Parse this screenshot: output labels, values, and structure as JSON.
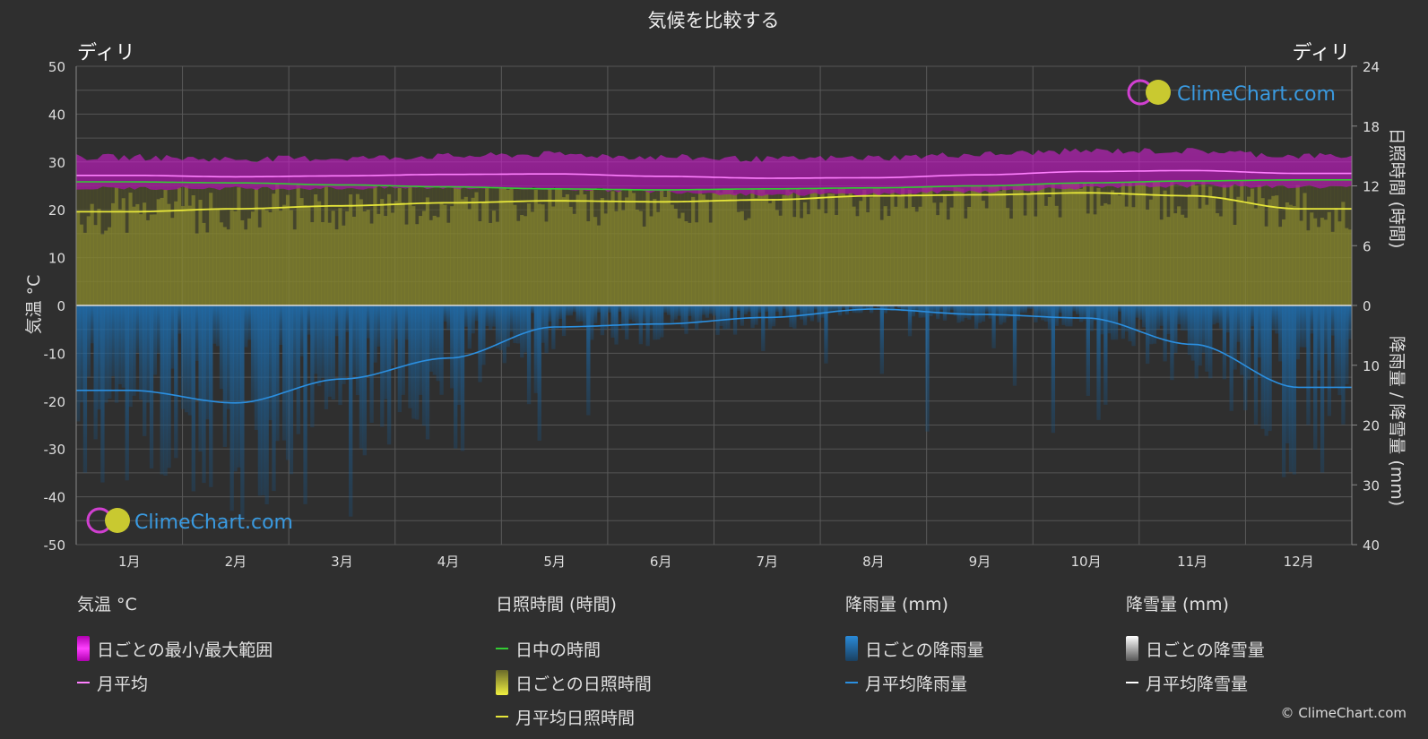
{
  "chart_data": {
    "type": "area",
    "title": "気候を比較する",
    "location_left": "ディリ",
    "location_right": "ディリ",
    "categories": [
      "1月",
      "2月",
      "3月",
      "4月",
      "5月",
      "6月",
      "7月",
      "8月",
      "9月",
      "10月",
      "11月",
      "12月"
    ],
    "y_left": {
      "label": "気温 °C",
      "range": [
        -50,
        50
      ],
      "ticks": [
        "50",
        "40",
        "30",
        "20",
        "10",
        "0",
        "-10",
        "-20",
        "-30",
        "-40",
        "-50"
      ]
    },
    "y_right_top": {
      "label": "日照時間 (時間)",
      "range": [
        0,
        24
      ],
      "ticks": [
        "24",
        "18",
        "12",
        "6",
        "0"
      ]
    },
    "y_right_bottom": {
      "label": "降雨量 / 降雪量 (mm)",
      "range": [
        0,
        40
      ],
      "ticks": [
        "0",
        "10",
        "20",
        "30",
        "40"
      ]
    },
    "series": [
      {
        "name": "月平均",
        "unit": "°C",
        "values": [
          27.2,
          26.9,
          27.1,
          27.4,
          27.5,
          27.0,
          26.6,
          26.7,
          27.3,
          28.0,
          28.2,
          27.6
        ]
      },
      {
        "name": "日中の時間",
        "unit": "h",
        "values": [
          12.4,
          12.3,
          12.1,
          11.9,
          11.7,
          11.6,
          11.7,
          11.8,
          12.0,
          12.3,
          12.5,
          12.6
        ]
      },
      {
        "name": "月平均日照時間",
        "unit": "h",
        "values": [
          9.4,
          9.7,
          10.0,
          10.3,
          10.5,
          10.4,
          10.6,
          11.0,
          11.1,
          11.3,
          11.0,
          9.7
        ]
      },
      {
        "name": "月平均降雨量",
        "unit": "mm",
        "values": [
          14.2,
          16.3,
          12.3,
          8.8,
          3.6,
          3.1,
          2.0,
          0.6,
          1.5,
          2.1,
          6.5,
          13.7
        ]
      }
    ],
    "daily_temp_range": {
      "min": [
        24.5,
        24.5,
        24.5,
        24.6,
        24.4,
        23.8,
        23.2,
        23.3,
        23.9,
        24.6,
        25.0,
        24.8
      ],
      "max": [
        31.0,
        30.6,
        30.8,
        31.2,
        31.6,
        31.0,
        30.6,
        30.9,
        31.6,
        32.3,
        32.3,
        31.3
      ]
    },
    "colors": {
      "background": "#2f2f2f",
      "temp_range": "#cc22cc",
      "temp_avg": "#ff80ff",
      "daylight": "#33cc33",
      "sunshine_fill": "#8a8a2a",
      "sunshine_avg": "#e6e63a",
      "rain": "#1a5f99",
      "rain_avg": "#2b8fe0",
      "snow_avg": "#ffffff",
      "brand": "#3a9ae0"
    },
    "grid": true
  },
  "watermark": {
    "text": "ClimeChart.com"
  },
  "legend": {
    "temp": {
      "head": "気温 °C",
      "items": [
        "日ごとの最小/最大範囲",
        "月平均"
      ]
    },
    "sun": {
      "head": "日照時間 (時間)",
      "items": [
        "日中の時間",
        "日ごとの日照時間",
        "月平均日照時間"
      ]
    },
    "rain": {
      "head": "降雨量 (mm)",
      "items": [
        "日ごとの降雨量",
        "月平均降雨量"
      ]
    },
    "snow": {
      "head": "降雪量 (mm)",
      "items": [
        "日ごとの降雪量",
        "月平均降雪量"
      ]
    }
  },
  "copyright": "© ClimeChart.com"
}
